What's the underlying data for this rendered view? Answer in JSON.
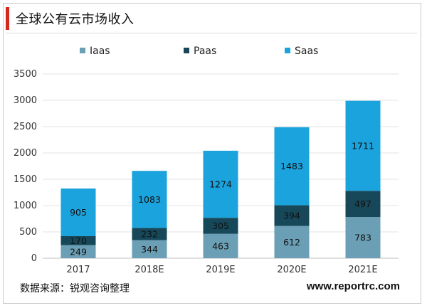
{
  "header": {
    "title": "全球公有云市场收入"
  },
  "footer": {
    "source": "数据来源：锐观咨询整理",
    "website": "www.reportrc.com"
  },
  "chart_data": {
    "type": "bar",
    "stacked": true,
    "title": "",
    "xlabel": "",
    "ylabel": "",
    "categories": [
      "2017",
      "2018E",
      "2019E",
      "2020E",
      "2021E"
    ],
    "ylim": [
      0,
      3500
    ],
    "yticks": [
      "0",
      "500",
      "1000",
      "1500",
      "2000",
      "2500",
      "3000",
      "3500"
    ],
    "grid": true,
    "legend": "top",
    "series": [
      {
        "name": "Iaas",
        "color": "#6b9fb5",
        "values": [
          249,
          344,
          463,
          612,
          783
        ]
      },
      {
        "name": "Paas",
        "color": "#17485a",
        "values": [
          170,
          232,
          305,
          394,
          497
        ]
      },
      {
        "name": "Saas",
        "color": "#1ba3dd",
        "values": [
          905,
          1083,
          1274,
          1483,
          1711
        ]
      }
    ]
  }
}
